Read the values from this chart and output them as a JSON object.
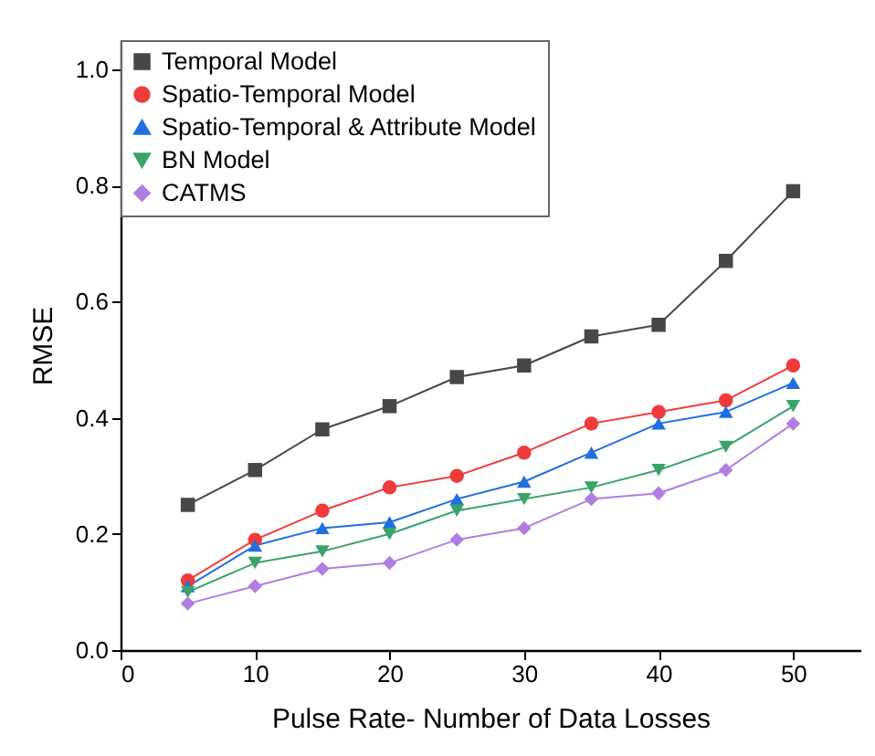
{
  "chart_data": {
    "type": "line",
    "xlabel": "Pulse Rate- Number of Data Losses",
    "ylabel": "RMSE",
    "x": [
      5,
      10,
      15,
      20,
      25,
      30,
      35,
      40,
      45,
      50
    ],
    "xlim": [
      0,
      55
    ],
    "xticks": [
      0,
      10,
      20,
      30,
      40,
      50
    ],
    "ylim": [
      0,
      1.05
    ],
    "yticks": [
      {
        "value": 0,
        "label": "0.0"
      },
      {
        "value": 0.2,
        "label": "0.2"
      },
      {
        "value": 0.4,
        "label": "0.4"
      },
      {
        "value": 0.6,
        "label": "0.6"
      },
      {
        "value": 0.8,
        "label": "0.8"
      },
      {
        "value": 1.0,
        "label": "1.0"
      }
    ],
    "grid": false,
    "legend": "top left",
    "series": [
      {
        "name": "Temporal Model",
        "color": "#474747",
        "marker": "square",
        "values": [
          0.25,
          0.31,
          0.38,
          0.42,
          0.47,
          0.49,
          0.54,
          0.56,
          0.67,
          0.79
        ]
      },
      {
        "name": "Spatio-Temporal Model",
        "color": "#ef3b3b",
        "marker": "circle",
        "values": [
          0.12,
          0.19,
          0.24,
          0.28,
          0.3,
          0.34,
          0.39,
          0.41,
          0.43,
          0.49
        ]
      },
      {
        "name": "Spatio-Temporal & Attribute Model",
        "color": "#1f6fdf",
        "marker": "triangle",
        "values": [
          0.11,
          0.18,
          0.21,
          0.22,
          0.26,
          0.29,
          0.34,
          0.39,
          0.41,
          0.46
        ]
      },
      {
        "name": "BN Model",
        "color": "#3aa36a",
        "marker": "triangle-down",
        "values": [
          0.1,
          0.15,
          0.17,
          0.2,
          0.24,
          0.26,
          0.28,
          0.31,
          0.35,
          0.42
        ]
      },
      {
        "name": "CATMS",
        "color": "#b07de0",
        "marker": "diamond",
        "values": [
          0.08,
          0.11,
          0.14,
          0.15,
          0.19,
          0.21,
          0.26,
          0.27,
          0.31,
          0.39
        ]
      }
    ]
  }
}
